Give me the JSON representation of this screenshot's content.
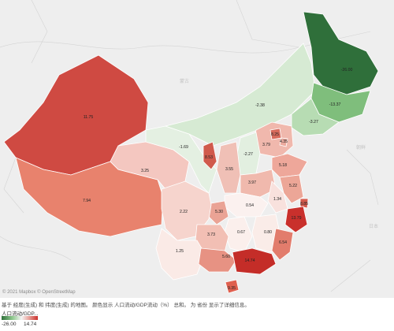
{
  "map": {
    "attribution": "© 2021 Mapbox © OpenStreetMap",
    "caption": "基于 经度(生成) 和 纬度(生成) 的地图。 颜色显示 人口流动/GDP流动（%） 总和。 为 省份 显示了详细信息。",
    "basemap_labels": [
      "蒙古",
      "朝鲜",
      "日本"
    ],
    "legend": {
      "title": "人口流动/GDP...",
      "min_label": "-26.00",
      "max_label": "14.74",
      "min": -26.0,
      "max": 14.74,
      "colors": [
        "#2f6f3a",
        "#8fc88e",
        "#f4f4f4",
        "#e8a39c",
        "#c9302c"
      ]
    },
    "regions": [
      {
        "key": "xinjiang",
        "value": "11.75"
      },
      {
        "key": "xizang",
        "value": "7.94"
      },
      {
        "key": "qinghai",
        "value": "3.25"
      },
      {
        "key": "gansu",
        "value": "-1.69"
      },
      {
        "key": "neimenggu",
        "value": "-2.38"
      },
      {
        "key": "heilongjiang",
        "value": "-26.00"
      },
      {
        "key": "jilin",
        "value": "-13.37"
      },
      {
        "key": "liaoning",
        "value": "-3.27"
      },
      {
        "key": "hebei",
        "value": "3.79"
      },
      {
        "key": "beijing",
        "value": "8.25"
      },
      {
        "key": "tianjin",
        "value": "4.35"
      },
      {
        "key": "shanxi",
        "value": "-2.27"
      },
      {
        "key": "shaanxi",
        "value": "3.55"
      },
      {
        "key": "ningxia",
        "value": "8.53"
      },
      {
        "key": "shandong",
        "value": "5.18"
      },
      {
        "key": "henan",
        "value": "3.97"
      },
      {
        "key": "jiangsu",
        "value": "5.22"
      },
      {
        "key": "anhui",
        "value": "1.34"
      },
      {
        "key": "shanghai",
        "value": "8.85"
      },
      {
        "key": "zhejiang",
        "value": "13.79"
      },
      {
        "key": "hubei",
        "value": "0.54"
      },
      {
        "key": "chongqing",
        "value": "5.30"
      },
      {
        "key": "sichuan",
        "value": "2.22"
      },
      {
        "key": "hunan",
        "value": "0.67"
      },
      {
        "key": "jiangxi",
        "value": "0.80"
      },
      {
        "key": "fujian",
        "value": "6.54"
      },
      {
        "key": "guizhou",
        "value": "3.73"
      },
      {
        "key": "yunnan",
        "value": "1.25"
      },
      {
        "key": "guangxi",
        "value": "5.60"
      },
      {
        "key": "guangdong",
        "value": "14.74"
      },
      {
        "key": "hainan",
        "value": "9.35"
      }
    ]
  }
}
